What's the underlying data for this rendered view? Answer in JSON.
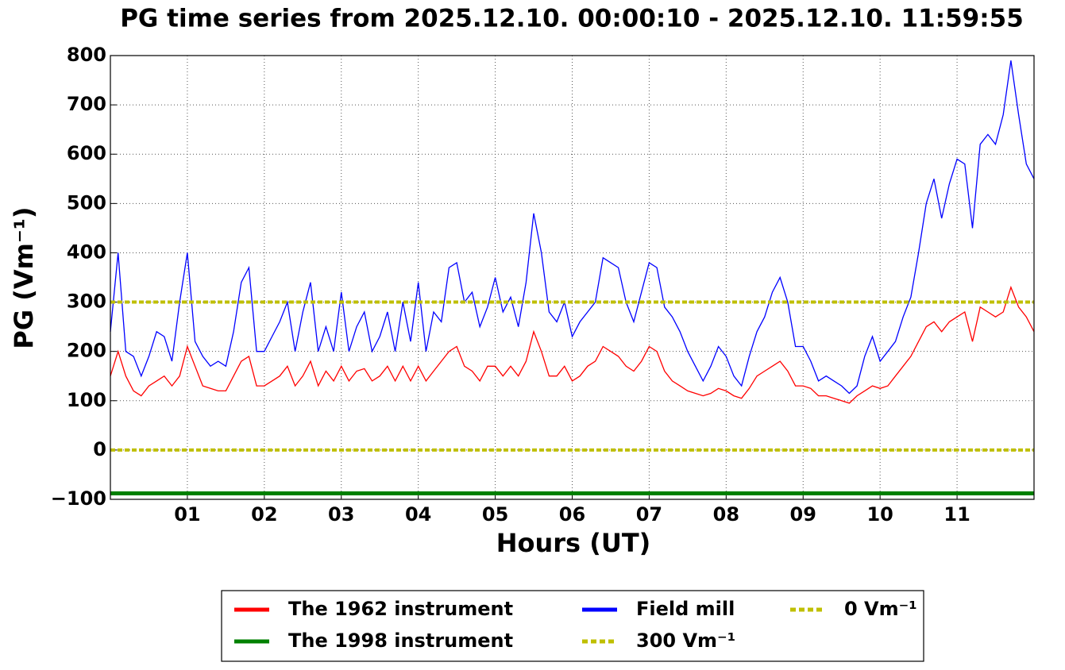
{
  "chart_data": {
    "type": "line",
    "title": "PG time series from 2025.12.10. 00:00:10 - 2025.12.10. 11:59:55",
    "x_label": "Hours (UT)",
    "y_label": "PG (Vm⁻¹)",
    "xlim": [
      0,
      12
    ],
    "ylim": [
      -100,
      800
    ],
    "xticks": [
      {
        "value": 1,
        "label": "01"
      },
      {
        "value": 2,
        "label": "02"
      },
      {
        "value": 3,
        "label": "03"
      },
      {
        "value": 4,
        "label": "04"
      },
      {
        "value": 5,
        "label": "05"
      },
      {
        "value": 6,
        "label": "06"
      },
      {
        "value": 7,
        "label": "07"
      },
      {
        "value": 8,
        "label": "08"
      },
      {
        "value": 9,
        "label": "09"
      },
      {
        "value": 10,
        "label": "10"
      },
      {
        "value": 11,
        "label": "11"
      }
    ],
    "yticks": [
      {
        "value": -100,
        "label": "−100"
      },
      0,
      100,
      200,
      300,
      400,
      500,
      600,
      700,
      800
    ],
    "grid": true,
    "x": [
      0,
      0.1,
      0.2,
      0.3,
      0.4,
      0.5,
      0.6,
      0.7,
      0.8,
      0.9,
      1,
      1.1,
      1.2,
      1.3,
      1.4,
      1.5,
      1.6,
      1.7,
      1.8,
      1.9,
      2,
      2.1,
      2.2,
      2.3,
      2.4,
      2.5,
      2.6,
      2.7,
      2.8,
      2.9,
      3,
      3.1,
      3.2,
      3.3,
      3.4,
      3.5,
      3.6,
      3.7,
      3.8,
      3.9,
      4,
      4.1,
      4.2,
      4.3,
      4.4,
      4.5,
      4.6,
      4.7,
      4.8,
      4.9,
      5,
      5.1,
      5.2,
      5.3,
      5.4,
      5.5,
      5.6,
      5.7,
      5.8,
      5.9,
      6,
      6.1,
      6.2,
      6.3,
      6.4,
      6.5,
      6.6,
      6.7,
      6.8,
      6.9,
      7,
      7.1,
      7.2,
      7.3,
      7.4,
      7.5,
      7.6,
      7.7,
      7.8,
      7.9,
      8,
      8.1,
      8.2,
      8.3,
      8.4,
      8.5,
      8.6,
      8.7,
      8.8,
      8.9,
      9,
      9.1,
      9.2,
      9.3,
      9.4,
      9.5,
      9.6,
      9.7,
      9.8,
      9.9,
      10,
      10.1,
      10.2,
      10.3,
      10.4,
      10.5,
      10.6,
      10.7,
      10.8,
      10.9,
      11,
      11.1,
      11.2,
      11.3,
      11.4,
      11.5,
      11.6,
      11.7,
      11.8,
      11.9,
      12
    ],
    "series": [
      {
        "name": "The 1962 instrument",
        "color": "#ff0000",
        "values": [
          150,
          200,
          150,
          120,
          110,
          130,
          140,
          150,
          130,
          150,
          210,
          170,
          130,
          125,
          120,
          120,
          150,
          180,
          190,
          130,
          130,
          140,
          150,
          170,
          130,
          150,
          180,
          130,
          160,
          140,
          170,
          140,
          160,
          165,
          140,
          150,
          170,
          140,
          170,
          140,
          170,
          140,
          160,
          180,
          200,
          210,
          170,
          160,
          140,
          170,
          170,
          150,
          170,
          150,
          180,
          240,
          200,
          150,
          150,
          170,
          140,
          150,
          170,
          180,
          210,
          200,
          190,
          170,
          160,
          180,
          210,
          200,
          160,
          140,
          130,
          120,
          115,
          110,
          115,
          125,
          120,
          110,
          105,
          125,
          150,
          160,
          170,
          180,
          160,
          130,
          130,
          125,
          110,
          110,
          105,
          100,
          95,
          110,
          120,
          130,
          125,
          130,
          150,
          170,
          190,
          220,
          250,
          260,
          240,
          260,
          270,
          280,
          220,
          290,
          280,
          270,
          280,
          330,
          290,
          270,
          240
        ]
      },
      {
        "name": "The 1998 instrument",
        "color": "#008000",
        "x": [
          0,
          12
        ],
        "values": [
          -88,
          -88
        ]
      },
      {
        "name": "Field mill",
        "color": "#0000ff",
        "values": [
          240,
          400,
          200,
          190,
          150,
          190,
          240,
          230,
          180,
          300,
          400,
          220,
          190,
          170,
          180,
          170,
          240,
          340,
          370,
          200,
          200,
          230,
          260,
          300,
          200,
          280,
          340,
          200,
          250,
          200,
          320,
          200,
          250,
          280,
          200,
          230,
          280,
          200,
          300,
          220,
          340,
          200,
          280,
          260,
          370,
          380,
          300,
          320,
          250,
          290,
          350,
          280,
          310,
          250,
          340,
          480,
          400,
          280,
          260,
          300,
          230,
          260,
          280,
          300,
          390,
          380,
          370,
          300,
          260,
          320,
          380,
          370,
          290,
          270,
          240,
          200,
          170,
          140,
          170,
          210,
          190,
          150,
          130,
          190,
          240,
          270,
          320,
          350,
          300,
          210,
          210,
          180,
          140,
          150,
          140,
          130,
          115,
          130,
          190,
          230,
          180,
          200,
          220,
          270,
          310,
          400,
          500,
          550,
          470,
          540,
          590,
          580,
          450,
          620,
          640,
          620,
          680,
          790,
          680,
          580,
          550
        ]
      }
    ],
    "hlines": [
      {
        "name": "300 Vm⁻¹",
        "value": 300,
        "color": "#bfbf00"
      },
      {
        "name": "0 Vm⁻¹",
        "value": 0,
        "color": "#bfbf00"
      }
    ]
  }
}
